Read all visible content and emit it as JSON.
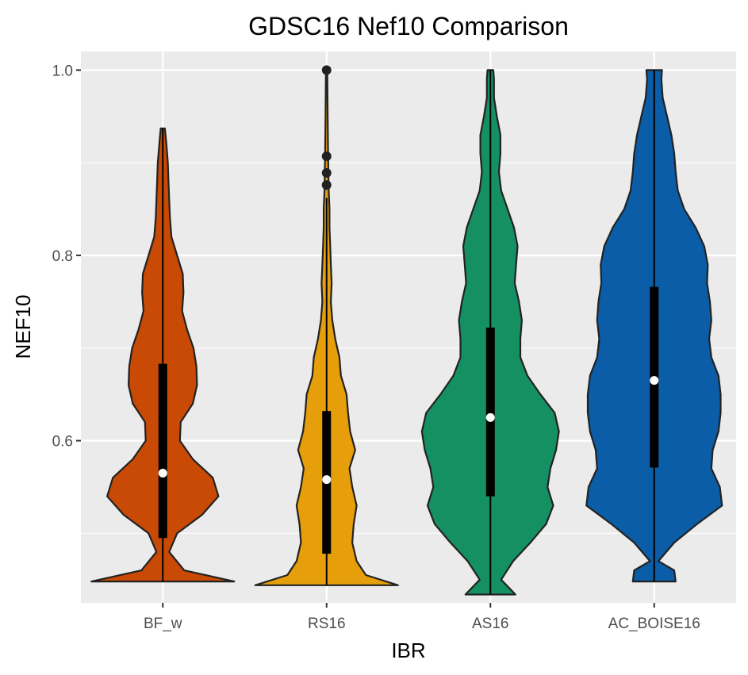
{
  "chart_data": {
    "type": "violin",
    "title": "GDSC16 Nef10 Comparison",
    "xlabel": "IBR",
    "ylabel": "NEF10",
    "ylim": [
      0.425,
      1.02
    ],
    "yticks": [
      0.6,
      0.8,
      1.0
    ],
    "ytick_labels": [
      "0.6",
      "0.8",
      "1.0"
    ],
    "grid": true,
    "legend": "none",
    "categories": [
      "BF_w",
      "RS16",
      "AS16",
      "AC_BOISE16"
    ],
    "series": [
      {
        "name": "BF_w",
        "color": "#C94A04",
        "min": 0.448,
        "max": 0.937,
        "q1": 0.495,
        "median": 0.565,
        "q3": 0.683,
        "whisker_low": 0.448,
        "whisker_high": 0.937,
        "outliers": [],
        "density": [
          [
            0.448,
            1.0
          ],
          [
            0.46,
            0.3
          ],
          [
            0.48,
            0.09
          ],
          [
            0.5,
            0.2
          ],
          [
            0.52,
            0.55
          ],
          [
            0.54,
            0.78
          ],
          [
            0.56,
            0.7
          ],
          [
            0.58,
            0.42
          ],
          [
            0.6,
            0.24
          ],
          [
            0.62,
            0.25
          ],
          [
            0.64,
            0.42
          ],
          [
            0.66,
            0.48
          ],
          [
            0.68,
            0.47
          ],
          [
            0.7,
            0.43
          ],
          [
            0.72,
            0.34
          ],
          [
            0.74,
            0.27
          ],
          [
            0.76,
            0.29
          ],
          [
            0.78,
            0.28
          ],
          [
            0.8,
            0.2
          ],
          [
            0.82,
            0.12
          ],
          [
            0.84,
            0.1
          ],
          [
            0.86,
            0.09
          ],
          [
            0.88,
            0.08
          ],
          [
            0.9,
            0.07
          ],
          [
            0.92,
            0.05
          ],
          [
            0.937,
            0.03
          ]
        ]
      },
      {
        "name": "RS16",
        "color": "#E69F0A",
        "min": 0.444,
        "max": 1.0,
        "q1": 0.478,
        "median": 0.558,
        "q3": 0.632,
        "whisker_low": 0.444,
        "whisker_high": 0.862,
        "outliers": [
          0.876,
          0.889,
          0.907,
          1.0
        ],
        "density": [
          [
            0.444,
            1.0
          ],
          [
            0.455,
            0.55
          ],
          [
            0.47,
            0.42
          ],
          [
            0.49,
            0.36
          ],
          [
            0.51,
            0.38
          ],
          [
            0.53,
            0.42
          ],
          [
            0.55,
            0.36
          ],
          [
            0.57,
            0.32
          ],
          [
            0.59,
            0.4
          ],
          [
            0.61,
            0.33
          ],
          [
            0.63,
            0.3
          ],
          [
            0.65,
            0.28
          ],
          [
            0.67,
            0.2
          ],
          [
            0.69,
            0.18
          ],
          [
            0.71,
            0.12
          ],
          [
            0.73,
            0.08
          ],
          [
            0.75,
            0.06
          ],
          [
            0.77,
            0.07
          ],
          [
            0.79,
            0.06
          ],
          [
            0.81,
            0.05
          ],
          [
            0.83,
            0.04
          ],
          [
            0.85,
            0.04
          ],
          [
            0.87,
            0.03
          ],
          [
            0.89,
            0.025
          ],
          [
            0.91,
            0.02
          ],
          [
            0.95,
            0.015
          ],
          [
            0.98,
            0.012
          ],
          [
            1.0,
            0.01
          ]
        ]
      },
      {
        "name": "AS16",
        "color": "#159063",
        "min": 0.434,
        "max": 1.0,
        "q1": 0.54,
        "median": 0.625,
        "q3": 0.722,
        "whisker_low": 0.434,
        "whisker_high": 1.0,
        "outliers": [],
        "density": [
          [
            0.434,
            0.35
          ],
          [
            0.45,
            0.15
          ],
          [
            0.47,
            0.32
          ],
          [
            0.49,
            0.56
          ],
          [
            0.51,
            0.78
          ],
          [
            0.53,
            0.88
          ],
          [
            0.55,
            0.8
          ],
          [
            0.57,
            0.84
          ],
          [
            0.59,
            0.92
          ],
          [
            0.61,
            0.96
          ],
          [
            0.63,
            0.9
          ],
          [
            0.65,
            0.7
          ],
          [
            0.67,
            0.52
          ],
          [
            0.69,
            0.42
          ],
          [
            0.71,
            0.42
          ],
          [
            0.73,
            0.44
          ],
          [
            0.75,
            0.4
          ],
          [
            0.77,
            0.34
          ],
          [
            0.79,
            0.36
          ],
          [
            0.81,
            0.38
          ],
          [
            0.83,
            0.33
          ],
          [
            0.85,
            0.24
          ],
          [
            0.87,
            0.15
          ],
          [
            0.89,
            0.12
          ],
          [
            0.91,
            0.14
          ],
          [
            0.93,
            0.14
          ],
          [
            0.95,
            0.09
          ],
          [
            0.97,
            0.05
          ],
          [
            0.99,
            0.05
          ],
          [
            1.0,
            0.04
          ]
        ]
      },
      {
        "name": "AC_BOISE16",
        "color": "#0A5DA6",
        "min": 0.448,
        "max": 1.0,
        "q1": 0.571,
        "median": 0.665,
        "q3": 0.766,
        "whisker_low": 0.448,
        "whisker_high": 1.0,
        "outliers": [],
        "density": [
          [
            0.448,
            0.3
          ],
          [
            0.46,
            0.28
          ],
          [
            0.47,
            0.06
          ],
          [
            0.49,
            0.28
          ],
          [
            0.51,
            0.6
          ],
          [
            0.53,
            0.95
          ],
          [
            0.55,
            0.92
          ],
          [
            0.57,
            0.8
          ],
          [
            0.59,
            0.82
          ],
          [
            0.61,
            0.9
          ],
          [
            0.63,
            0.93
          ],
          [
            0.65,
            0.93
          ],
          [
            0.67,
            0.9
          ],
          [
            0.69,
            0.8
          ],
          [
            0.71,
            0.77
          ],
          [
            0.73,
            0.8
          ],
          [
            0.75,
            0.78
          ],
          [
            0.77,
            0.74
          ],
          [
            0.79,
            0.75
          ],
          [
            0.81,
            0.7
          ],
          [
            0.83,
            0.58
          ],
          [
            0.85,
            0.42
          ],
          [
            0.87,
            0.33
          ],
          [
            0.89,
            0.3
          ],
          [
            0.91,
            0.28
          ],
          [
            0.93,
            0.24
          ],
          [
            0.95,
            0.18
          ],
          [
            0.97,
            0.12
          ],
          [
            0.99,
            0.1
          ],
          [
            1.0,
            0.11
          ]
        ]
      }
    ]
  }
}
